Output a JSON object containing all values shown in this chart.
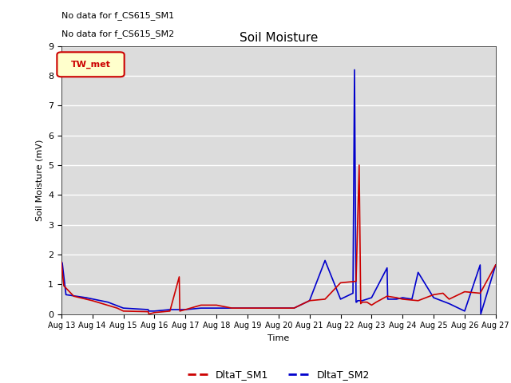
{
  "title": "Soil Moisture",
  "ylabel": "Soil Moisture (mV)",
  "xlabel": "Time",
  "ylim": [
    0.0,
    9.0
  ],
  "background_color": "#dcdcdc",
  "text_annotations": [
    "No data for f_CS615_SM1",
    "No data for f_CS615_SM2"
  ],
  "legend_label": "TW_met",
  "sm1_color": "#cc0000",
  "sm2_color": "#0000cc",
  "x_tick_labels": [
    "Aug 13",
    "Aug 14",
    "Aug 15",
    "Aug 16",
    "Aug 17",
    "Aug 18",
    "Aug 19",
    "Aug 20",
    "Aug 21",
    "Aug 22",
    "Aug 23",
    "Aug 24",
    "Aug 25",
    "Aug 26",
    "Aug 27"
  ],
  "sm1_x": [
    0,
    0.08,
    0.4,
    1.0,
    1.8,
    2.0,
    2.8,
    2.82,
    3.0,
    3.5,
    3.8,
    3.82,
    4.0,
    4.5,
    5.0,
    5.5,
    6.0,
    6.5,
    7.0,
    7.5,
    8.0,
    8.5,
    9.0,
    9.5,
    9.6,
    9.65,
    9.7,
    9.85,
    10.0,
    10.15,
    10.5,
    10.8,
    11.0,
    11.5,
    12.0,
    12.3,
    12.5,
    13.0,
    13.5,
    14.0
  ],
  "sm1_y": [
    1.75,
    0.95,
    0.6,
    0.45,
    0.2,
    0.1,
    0.08,
    0.0,
    0.05,
    0.1,
    1.25,
    0.1,
    0.15,
    0.3,
    0.3,
    0.2,
    0.2,
    0.2,
    0.2,
    0.2,
    0.45,
    0.5,
    1.05,
    1.1,
    5.0,
    0.35,
    0.4,
    0.4,
    0.3,
    0.4,
    0.6,
    0.55,
    0.5,
    0.45,
    0.65,
    0.7,
    0.5,
    0.75,
    0.7,
    1.65
  ],
  "sm2_x": [
    0,
    0.03,
    0.15,
    0.8,
    1.5,
    2.0,
    2.8,
    2.82,
    3.0,
    3.5,
    4.0,
    4.5,
    5.0,
    5.5,
    6.0,
    6.5,
    7.0,
    7.5,
    8.0,
    8.5,
    9.0,
    9.4,
    9.45,
    9.5,
    9.52,
    9.55,
    9.7,
    9.85,
    10.0,
    10.5,
    10.52,
    10.8,
    11.0,
    11.3,
    11.5,
    12.0,
    12.5,
    13.0,
    13.5,
    13.52,
    14.0
  ],
  "sm2_y": [
    1.75,
    1.72,
    0.65,
    0.55,
    0.4,
    0.2,
    0.15,
    0.1,
    0.1,
    0.15,
    0.15,
    0.2,
    0.2,
    0.2,
    0.2,
    0.2,
    0.2,
    0.2,
    0.45,
    1.8,
    0.5,
    0.7,
    8.2,
    0.4,
    0.4,
    0.45,
    0.45,
    0.5,
    0.55,
    1.55,
    0.5,
    0.5,
    0.55,
    0.5,
    1.4,
    0.55,
    0.35,
    0.1,
    1.65,
    0.0,
    1.65
  ]
}
